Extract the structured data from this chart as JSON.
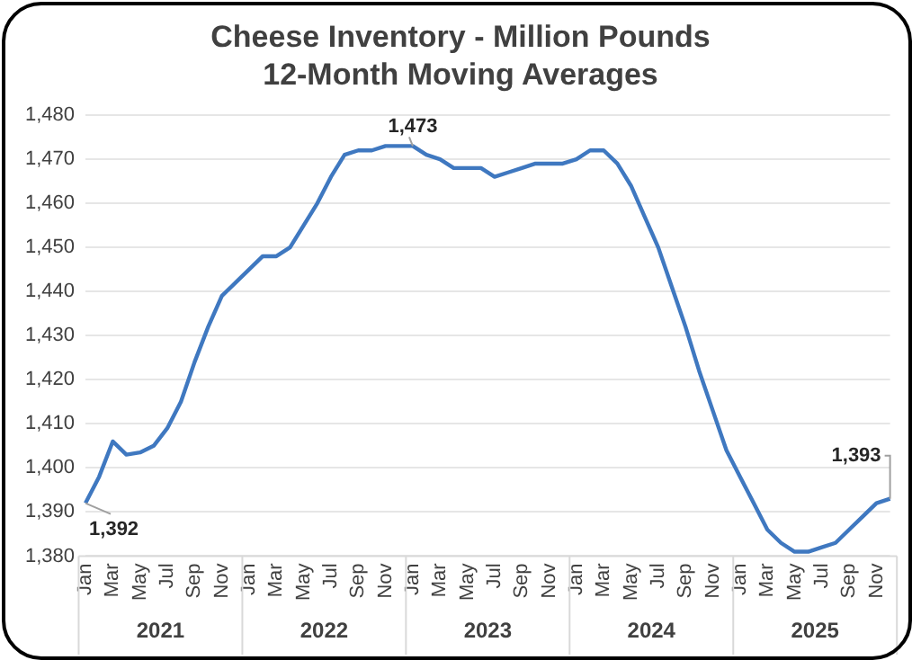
{
  "chart_data": {
    "type": "line",
    "title": "Cheese Inventory - Million Pounds\n12-Month Moving Averages",
    "categories": [
      "Jan",
      null,
      "Mar",
      null,
      "May",
      null,
      "Jul",
      null,
      "Sep",
      null,
      "Nov",
      null,
      "Jan",
      null,
      "Mar",
      null,
      "May",
      null,
      "Jul",
      null,
      "Sep",
      null,
      "Nov",
      null,
      "Jan",
      null,
      "Mar",
      null,
      "May",
      null,
      "Jul",
      null,
      "Sep",
      null,
      "Nov",
      null,
      "Jan",
      null,
      "Mar",
      null,
      "May",
      null,
      "Jul",
      null,
      "Sep",
      null,
      "Nov",
      null,
      "Jan",
      null,
      "Mar",
      null,
      "May",
      null,
      "Jul",
      null,
      "Sep",
      null,
      "Nov",
      null
    ],
    "series": [
      {
        "color": "#3f78c0",
        "values": [
          1392,
          1398,
          1406,
          1403,
          1403.5,
          1405,
          1409,
          1415,
          1424,
          1432,
          1439,
          1442,
          1445,
          1448,
          1448,
          1450,
          1455,
          1460,
          1466,
          1471,
          1472,
          1472,
          1473,
          1473,
          1473,
          1471,
          1470,
          1468,
          1468,
          1468,
          1466,
          1467,
          1468,
          1469,
          1469,
          1469,
          1470,
          1472,
          1472,
          1469,
          1464,
          1457,
          1450,
          1441,
          1432,
          1422,
          1413,
          1404,
          1398,
          1392,
          1386,
          1383,
          1381,
          1381,
          1382,
          1383,
          1386,
          1389,
          1392,
          1393
        ],
        "value_labels": [
          "1,392",
          null,
          null,
          null,
          null,
          null,
          null,
          null,
          null,
          null,
          null,
          null,
          null,
          null,
          null,
          null,
          null,
          null,
          null,
          null,
          null,
          null,
          null,
          null,
          "1,473",
          null,
          null,
          null,
          null,
          null,
          null,
          null,
          null,
          null,
          null,
          null,
          null,
          null,
          null,
          null,
          null,
          null,
          null,
          null,
          null,
          null,
          null,
          null,
          null,
          null,
          null,
          null,
          null,
          null,
          null,
          null,
          null,
          null,
          null,
          "1,393"
        ]
      }
    ],
    "annotations": [
      "2021",
      "2022",
      "2023",
      "2024",
      "2025"
    ],
    "ylim": [
      1380,
      1480
    ],
    "yticks": [
      {
        "value": 1380,
        "label": "1,380"
      },
      {
        "value": 1390,
        "label": "1,390"
      },
      {
        "value": 1400,
        "label": "1,400"
      },
      {
        "value": 1410,
        "label": "1,410"
      },
      {
        "value": 1420,
        "label": "1,420"
      },
      {
        "value": 1430,
        "label": "1,430"
      },
      {
        "value": 1440,
        "label": "1,440"
      },
      {
        "value": 1450,
        "label": "1,450"
      },
      {
        "value": 1460,
        "label": "1,460"
      },
      {
        "value": 1470,
        "label": "1,470"
      },
      {
        "value": 1480,
        "label": "1,480"
      }
    ],
    "grid": "y",
    "legend": false,
    "marker": "none",
    "line_style": "solid"
  }
}
